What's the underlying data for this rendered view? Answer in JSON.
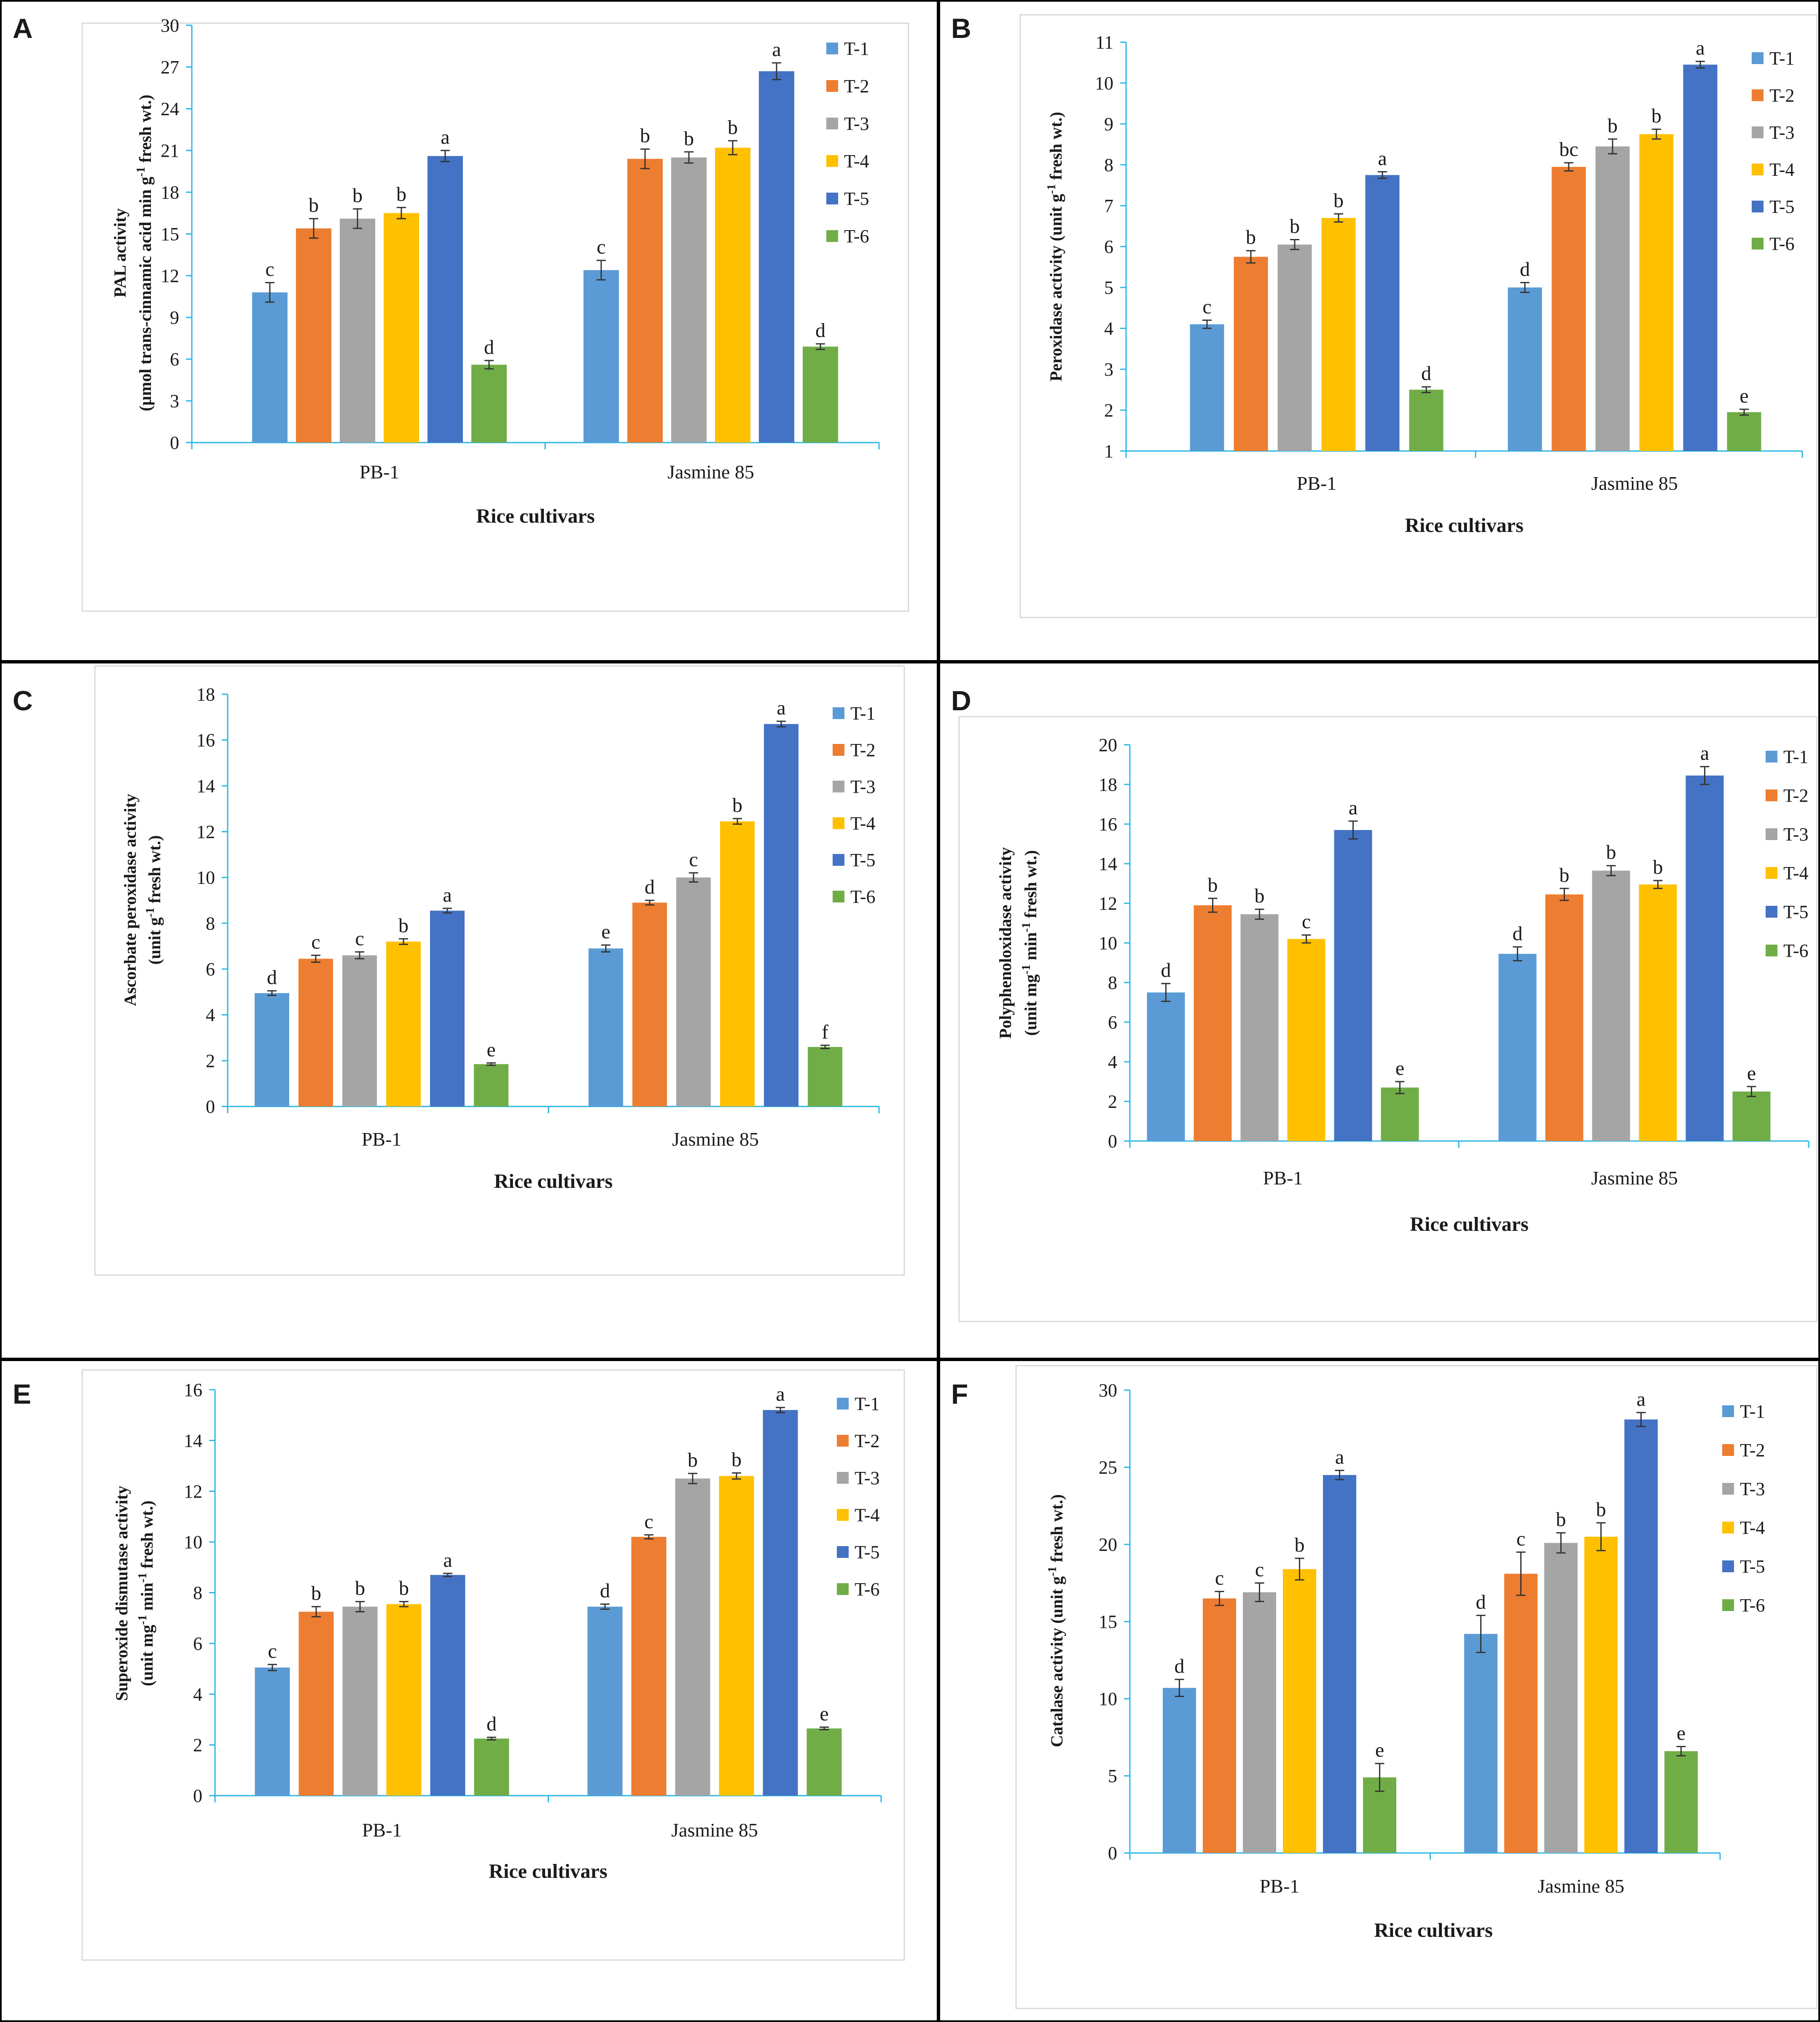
{
  "figure": {
    "colors": {
      "T-1": "#5b9bd5",
      "T-2": "#ed7d31",
      "T-3": "#a5a5a5",
      "T-4": "#ffc000",
      "T-5": "#4472c4",
      "T-6": "#70ad47"
    },
    "axis_color": "#29b6e6",
    "border_color": "#000000"
  },
  "chart_data": [
    {
      "panel": "A",
      "type": "bar",
      "title": "",
      "xlabel": "Rice cultivars",
      "ylabel_lines": [
        "PAL activity",
        "(µmol trans-cinnamic acid min g",
        "-1",
        " fresh wt.)"
      ],
      "categories": [
        "PB-1",
        "Jasmine 85"
      ],
      "ylim": [
        0,
        30
      ],
      "yticks": [
        0,
        3,
        6,
        9,
        12,
        15,
        18,
        21,
        24,
        27,
        30
      ],
      "series": [
        {
          "name": "T-1",
          "values": [
            10.8,
            12.4
          ],
          "errors": [
            0.7,
            0.7
          ],
          "letters": [
            "c",
            "c"
          ]
        },
        {
          "name": "T-2",
          "values": [
            15.4,
            20.4
          ],
          "errors": [
            0.7,
            0.7
          ],
          "letters": [
            "b",
            "b"
          ]
        },
        {
          "name": "T-3",
          "values": [
            16.1,
            20.5
          ],
          "errors": [
            0.7,
            0.4
          ],
          "letters": [
            "b",
            "b"
          ]
        },
        {
          "name": "T-4",
          "values": [
            16.5,
            21.2
          ],
          "errors": [
            0.4,
            0.5
          ],
          "letters": [
            "b",
            "b"
          ]
        },
        {
          "name": "T-5",
          "values": [
            20.6,
            26.7
          ],
          "errors": [
            0.4,
            0.6
          ],
          "letters": [
            "a",
            "a"
          ]
        },
        {
          "name": "T-6",
          "values": [
            5.6,
            6.9
          ],
          "errors": [
            0.3,
            0.2
          ],
          "letters": [
            "d",
            "d"
          ]
        }
      ]
    },
    {
      "panel": "B",
      "type": "bar",
      "title": "",
      "xlabel": "Rice cultivars",
      "ylabel_lines": [
        "Peroxidase activity (unit g",
        "-1",
        " fresh wt.)"
      ],
      "categories": [
        "PB-1",
        "Jasmine 85"
      ],
      "ylim": [
        1,
        11
      ],
      "yticks": [
        1,
        2,
        3,
        4,
        5,
        6,
        7,
        8,
        9,
        10,
        11
      ],
      "series": [
        {
          "name": "T-1",
          "values": [
            4.1,
            5.0
          ],
          "errors": [
            0.1,
            0.12
          ],
          "letters": [
            "c",
            "d"
          ]
        },
        {
          "name": "T-2",
          "values": [
            5.75,
            7.95
          ],
          "errors": [
            0.15,
            0.1
          ],
          "letters": [
            "b",
            "bc"
          ]
        },
        {
          "name": "T-3",
          "values": [
            6.05,
            8.45
          ],
          "errors": [
            0.12,
            0.18
          ],
          "letters": [
            "b",
            "b"
          ]
        },
        {
          "name": "T-4",
          "values": [
            6.7,
            8.75
          ],
          "errors": [
            0.1,
            0.12
          ],
          "letters": [
            "b",
            "b"
          ]
        },
        {
          "name": "T-5",
          "values": [
            7.75,
            10.45
          ],
          "errors": [
            0.08,
            0.08
          ],
          "letters": [
            "a",
            "a"
          ]
        },
        {
          "name": "T-6",
          "values": [
            2.5,
            1.95
          ],
          "errors": [
            0.07,
            0.07
          ],
          "letters": [
            "d",
            "e"
          ]
        }
      ]
    },
    {
      "panel": "C",
      "type": "bar",
      "title": "",
      "xlabel": "Rice cultivars",
      "ylabel_lines": [
        "Ascorbate peroxidase activity",
        "(unit g",
        "-1",
        " fresh wt.)"
      ],
      "categories": [
        "PB-1",
        "Jasmine 85"
      ],
      "ylim": [
        0,
        18
      ],
      "yticks": [
        0,
        2,
        4,
        6,
        8,
        10,
        12,
        14,
        16,
        18
      ],
      "series": [
        {
          "name": "T-1",
          "values": [
            4.95,
            6.9
          ],
          "errors": [
            0.1,
            0.15
          ],
          "letters": [
            "d",
            "e"
          ]
        },
        {
          "name": "T-2",
          "values": [
            6.45,
            8.9
          ],
          "errors": [
            0.15,
            0.1
          ],
          "letters": [
            "c",
            "d"
          ]
        },
        {
          "name": "T-3",
          "values": [
            6.6,
            10.0
          ],
          "errors": [
            0.15,
            0.2
          ],
          "letters": [
            "c",
            "c"
          ]
        },
        {
          "name": "T-4",
          "values": [
            7.2,
            12.45
          ],
          "errors": [
            0.12,
            0.12
          ],
          "letters": [
            "b",
            "b"
          ]
        },
        {
          "name": "T-5",
          "values": [
            8.55,
            16.7
          ],
          "errors": [
            0.1,
            0.12
          ],
          "letters": [
            "a",
            "a"
          ]
        },
        {
          "name": "T-6",
          "values": [
            1.85,
            2.6
          ],
          "errors": [
            0.05,
            0.07
          ],
          "letters": [
            "e",
            "f"
          ]
        }
      ]
    },
    {
      "panel": "D",
      "type": "bar",
      "title": "",
      "xlabel": "Rice cultivars",
      "ylabel_lines": [
        "Polyphenoloxidase activity",
        "(unit mg",
        "-1",
        " min",
        "-1",
        " fresh wt.)"
      ],
      "categories": [
        "PB-1",
        "Jasmine 85"
      ],
      "ylim": [
        0,
        20
      ],
      "yticks": [
        0,
        2,
        4,
        6,
        8,
        10,
        12,
        14,
        16,
        18,
        20
      ],
      "series": [
        {
          "name": "T-1",
          "values": [
            7.5,
            9.45
          ],
          "errors": [
            0.45,
            0.35
          ],
          "letters": [
            "d",
            "d"
          ]
        },
        {
          "name": "T-2",
          "values": [
            11.9,
            12.45
          ],
          "errors": [
            0.35,
            0.3
          ],
          "letters": [
            "b",
            "b"
          ]
        },
        {
          "name": "T-3",
          "values": [
            11.45,
            13.65
          ],
          "errors": [
            0.25,
            0.25
          ],
          "letters": [
            "b",
            "b"
          ]
        },
        {
          "name": "T-4",
          "values": [
            10.2,
            12.95
          ],
          "errors": [
            0.2,
            0.2
          ],
          "letters": [
            "c",
            "b"
          ]
        },
        {
          "name": "T-5",
          "values": [
            15.7,
            18.45
          ],
          "errors": [
            0.45,
            0.45
          ],
          "letters": [
            "a",
            "a"
          ]
        },
        {
          "name": "T-6",
          "values": [
            2.7,
            2.5
          ],
          "errors": [
            0.3,
            0.25
          ],
          "letters": [
            "e",
            "e"
          ]
        }
      ]
    },
    {
      "panel": "E",
      "type": "bar",
      "title": "",
      "xlabel": "Rice cultivars",
      "ylabel_lines": [
        "Superoxide dismutase activity",
        "(unit mg",
        "-1",
        " min",
        "-1",
        " fresh wt.)"
      ],
      "categories": [
        "PB-1",
        "Jasmine 85"
      ],
      "ylim": [
        0,
        16
      ],
      "yticks": [
        0,
        2,
        4,
        6,
        8,
        10,
        12,
        14,
        16
      ],
      "series": [
        {
          "name": "T-1",
          "values": [
            5.05,
            7.45
          ],
          "errors": [
            0.12,
            0.1
          ],
          "letters": [
            "c",
            "d"
          ]
        },
        {
          "name": "T-2",
          "values": [
            7.25,
            10.2
          ],
          "errors": [
            0.2,
            0.08
          ],
          "letters": [
            "b",
            "c"
          ]
        },
        {
          "name": "T-3",
          "values": [
            7.45,
            12.5
          ],
          "errors": [
            0.2,
            0.2
          ],
          "letters": [
            "b",
            "b"
          ]
        },
        {
          "name": "T-4",
          "values": [
            7.55,
            12.6
          ],
          "errors": [
            0.1,
            0.12
          ],
          "letters": [
            "b",
            "b"
          ]
        },
        {
          "name": "T-5",
          "values": [
            8.7,
            15.2
          ],
          "errors": [
            0.06,
            0.1
          ],
          "letters": [
            "a",
            "a"
          ]
        },
        {
          "name": "T-6",
          "values": [
            2.25,
            2.65
          ],
          "errors": [
            0.05,
            0.05
          ],
          "letters": [
            "d",
            "e"
          ]
        }
      ]
    },
    {
      "panel": "F",
      "type": "bar",
      "title": "",
      "xlabel": "Rice cultivars",
      "ylabel_lines": [
        "Catalase activity (unit g",
        "-1",
        " fresh wt.)"
      ],
      "categories": [
        "PB-1",
        "Jasmine 85"
      ],
      "ylim": [
        0,
        30
      ],
      "yticks": [
        0,
        5,
        10,
        15,
        20,
        25,
        30
      ],
      "series": [
        {
          "name": "T-1",
          "values": [
            10.7,
            14.2
          ],
          "errors": [
            0.55,
            1.2
          ],
          "letters": [
            "d",
            "d"
          ]
        },
        {
          "name": "T-2",
          "values": [
            16.5,
            18.1
          ],
          "errors": [
            0.45,
            1.4
          ],
          "letters": [
            "c",
            "c"
          ]
        },
        {
          "name": "T-3",
          "values": [
            16.9,
            20.1
          ],
          "errors": [
            0.6,
            0.65
          ],
          "letters": [
            "c",
            "b"
          ]
        },
        {
          "name": "T-4",
          "values": [
            18.4,
            20.5
          ],
          "errors": [
            0.7,
            0.9
          ],
          "letters": [
            "b",
            "b"
          ]
        },
        {
          "name": "T-5",
          "values": [
            24.5,
            28.1
          ],
          "errors": [
            0.3,
            0.45
          ],
          "letters": [
            "a",
            "a"
          ]
        },
        {
          "name": "T-6",
          "values": [
            4.9,
            6.6
          ],
          "errors": [
            0.9,
            0.3
          ],
          "letters": [
            "e",
            "e"
          ]
        }
      ]
    }
  ]
}
